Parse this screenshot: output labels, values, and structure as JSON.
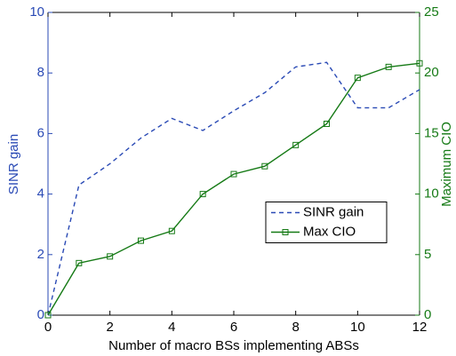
{
  "chart_data": {
    "type": "line",
    "x": [
      0,
      1,
      2,
      3,
      4,
      5,
      6,
      7,
      8,
      9,
      10,
      11,
      12
    ],
    "xlabel": "Number of macro BSs implementing ABSs",
    "ylabel": "SINR gain",
    "y2label": "Maximum CIO",
    "xlim": [
      0,
      12
    ],
    "xticks": [
      0,
      2,
      4,
      6,
      8,
      10,
      12
    ],
    "ylim": [
      0,
      10
    ],
    "yticks": [
      0,
      2,
      4,
      6,
      8,
      10
    ],
    "y2lim": [
      0,
      25
    ],
    "y2ticks": [
      0,
      5,
      10,
      15,
      20,
      25
    ],
    "ycolor": "#2a4ab5",
    "y2color": "#157a15",
    "legend_loc": "center right",
    "series": [
      {
        "name": "SINR gain",
        "color": "#2a4ab5",
        "line_style": "dashed",
        "marker": "none",
        "axis": "y",
        "values": [
          0,
          4.3,
          5.0,
          5.85,
          6.5,
          6.1,
          6.75,
          7.35,
          8.2,
          8.35,
          6.85,
          6.85,
          7.45
        ]
      },
      {
        "name": "Max CIO",
        "color": "#157a15",
        "line_style": "solid",
        "marker": "square",
        "axis": "y2",
        "values": [
          0,
          4.3,
          4.85,
          6.15,
          6.95,
          10.0,
          11.65,
          12.3,
          14.05,
          15.8,
          19.6,
          20.5,
          20.8
        ]
      }
    ]
  }
}
